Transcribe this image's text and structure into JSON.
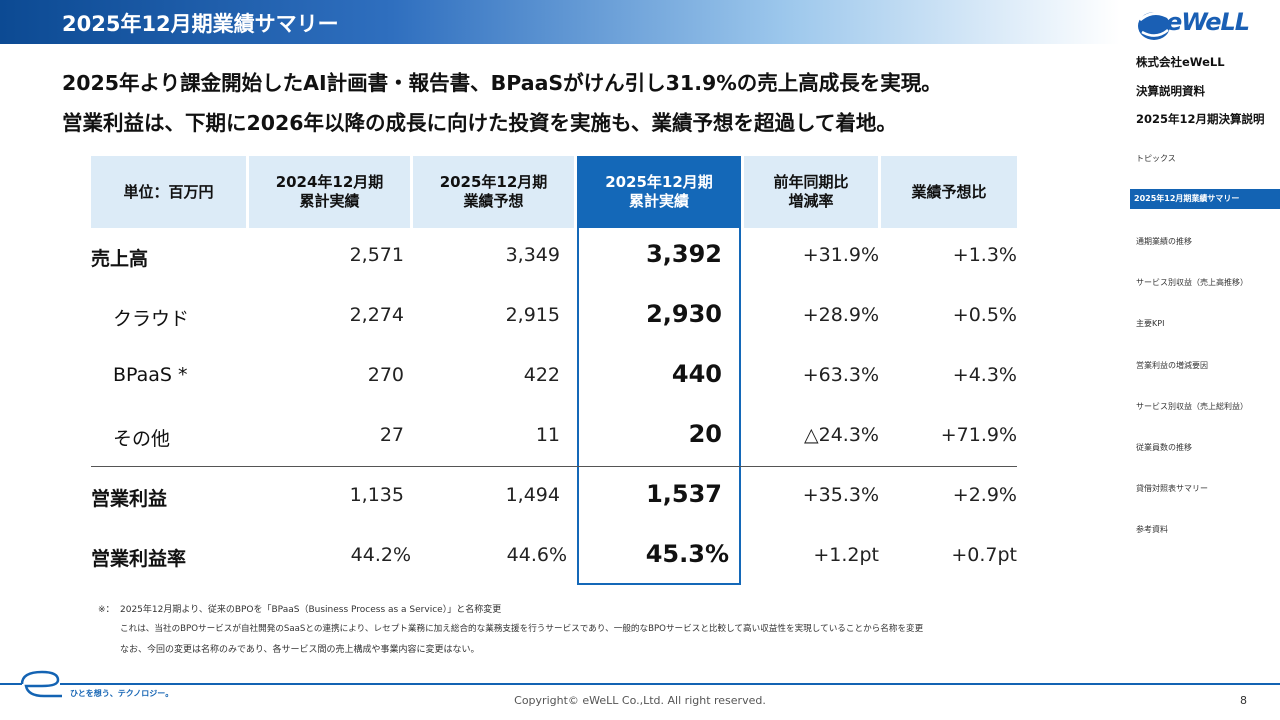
{
  "header": {
    "title": "2025年12月期業績サマリー"
  },
  "headline": {
    "line1": "2025年より課金開始したAI計画書・報告書、BPaaSがけん引し31.9%の売上高成長を実現。",
    "line2": "営業利益は、下期に2026年以降の成長に向けた投資を実施も、業績予想を超過して着地。"
  },
  "logo": {
    "text": "eWeLL"
  },
  "sidebar": {
    "company": "株式会社eWeLL",
    "doc": "決算説明資料",
    "period": "2025年12月期決算説明",
    "nav": [
      "トピックス",
      "2025年12月期業績サマリー",
      "通期業績の推移",
      "サービス別収益（売上高推移）",
      "主要KPI",
      "営業利益の増減要因",
      "サービス別収益（売上総利益）",
      "従業員数の推移",
      "貸借対照表サマリー",
      "参考資料"
    ]
  },
  "table": {
    "headers": {
      "unit": "単位：百万円",
      "prev_1": "2024年12月期",
      "prev_2": "累計実績",
      "fc_1": "2025年12月期",
      "fc_2": "業績予想",
      "cur_1": "2025年12月期",
      "cur_2": "累計実績",
      "yoy_1": "前年同期比",
      "yoy_2": "増減率",
      "vsfc": "業績予想比"
    },
    "rows": [
      {
        "label": "売上高",
        "prev": "2,571",
        "fc": "3,349",
        "cur": "3,392",
        "yoy": "+31.9%",
        "vsfc": "+1.3%"
      },
      {
        "label": "クラウド",
        "prev": "2,274",
        "fc": "2,915",
        "cur": "2,930",
        "yoy": "+28.9%",
        "vsfc": "+0.5%"
      },
      {
        "label": "BPaaS *",
        "prev": "270",
        "fc": "422",
        "cur": "440",
        "yoy": "+63.3%",
        "vsfc": "+4.3%"
      },
      {
        "label": "その他",
        "prev": "27",
        "fc": "11",
        "cur": "20",
        "yoy": "△24.3%",
        "vsfc": "+71.9%"
      },
      {
        "label": "営業利益",
        "prev": "1,135",
        "fc": "1,494",
        "cur": "1,537",
        "yoy": "+35.3%",
        "vsfc": "+2.9%"
      },
      {
        "label": "営業利益率",
        "prev": "44.2%",
        "fc": "44.6%",
        "cur": "45.3%",
        "yoy": "+1.2pt",
        "vsfc": "+0.7pt"
      }
    ]
  },
  "notes": {
    "mark": "※：",
    "line1": "2025年12月期より、従来のBPOを「BPaaS（Business Process as a Service）」と名称変更",
    "line2": "これは、当社のBPOサービスが自社開発のSaaSとの連携により、レセプト業務に加え総合的な業務支援を行うサービスであり、一般的なBPOサービスと比較して高い収益性を実現していることから名称を変更",
    "line3": "なお、今回の変更は名称のみであり、各サービス間の売上構成や事業内容に変更はない。"
  },
  "footer": {
    "tagline": "ひとを想う、テクノロジー。",
    "copyright": "Copyright© eWeLL Co.,Ltd. All right reserved.",
    "page": "8"
  }
}
